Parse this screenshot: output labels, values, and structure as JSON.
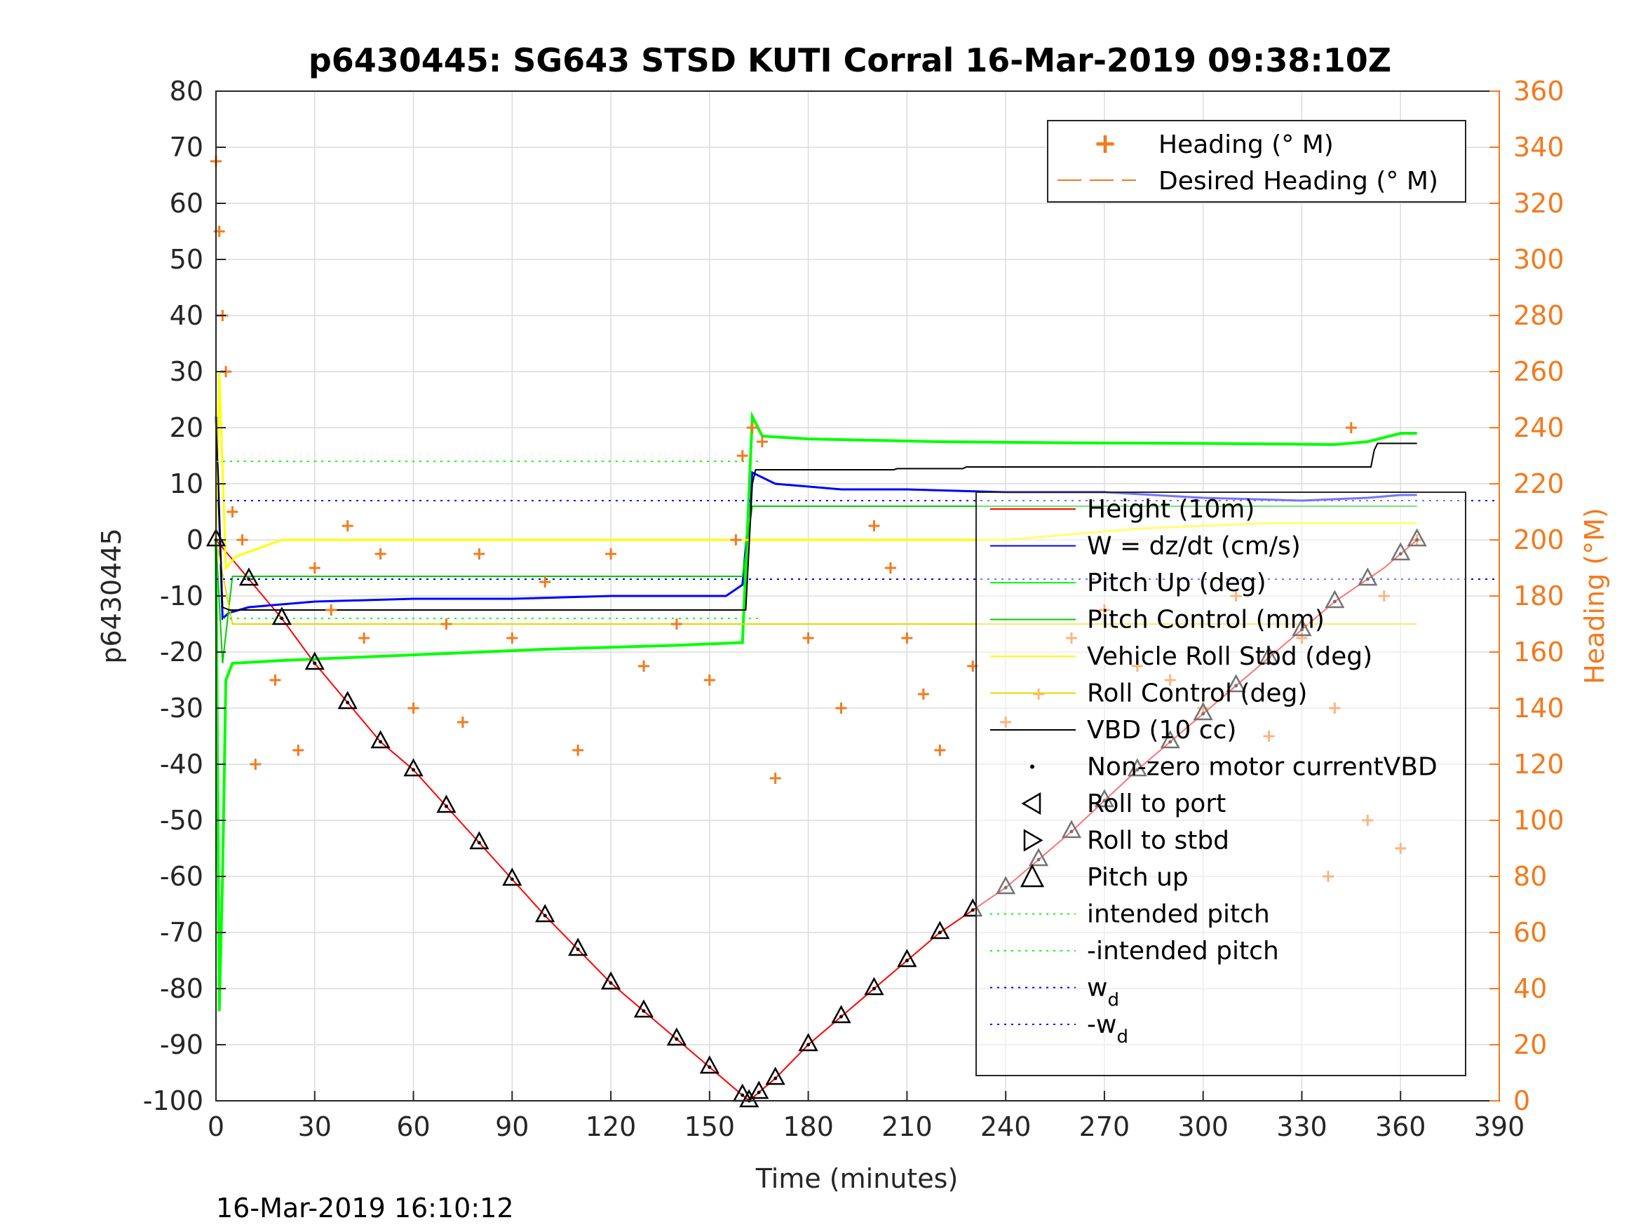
{
  "chart_data": {
    "type": "line",
    "title": "p6430445: SG643 STSD KUTI Corral 16-Mar-2019 09:38:10Z",
    "xlabel": "Time (minutes)",
    "ylabel_left": "p6430445",
    "ylabel_right": "Heading (°M)",
    "timestamp": "16-Mar-2019 16:10:12",
    "xlim": [
      0,
      390
    ],
    "ylim_left": [
      -100,
      80
    ],
    "ylim_right": [
      0,
      360
    ],
    "x_ticks": [
      "0",
      "30",
      "60",
      "90",
      "120",
      "150",
      "180",
      "210",
      "240",
      "270",
      "300",
      "330",
      "360",
      "390"
    ],
    "y_left_ticks": [
      "80",
      "70",
      "60",
      "50",
      "40",
      "30",
      "20",
      "10",
      "0",
      "-10",
      "-20",
      "-30",
      "-40",
      "-50",
      "-60",
      "-70",
      "-80",
      "-90",
      "-100"
    ],
    "y_right_ticks": [
      "360",
      "340",
      "320",
      "300",
      "280",
      "260",
      "240",
      "220",
      "200",
      "180",
      "160",
      "140",
      "120",
      "100",
      "80",
      "60",
      "40",
      "20",
      "0"
    ],
    "grid": true,
    "colors": {
      "heading": "#F27A1E",
      "height": "#FF0000",
      "w": "#0000FF",
      "pitch": "#00FF00",
      "roll": "#FFFF00",
      "vbd": "#000000",
      "axis_right": "#F27A1E"
    },
    "legend_heading": {
      "placement": "top-right",
      "entries": [
        "Heading (° M)",
        "Desired Heading (° M)"
      ]
    },
    "legend_main": {
      "placement": "right",
      "entries": [
        "Height (10m)",
        "W = dz/dt (cm/s)",
        "Pitch Up (deg)",
        "Pitch Control (mm)",
        "Vehicle Roll Stbd (deg)",
        "Roll Control (deg)",
        "VBD (10 cc)",
        "Non-zero motor currentVBD",
        "Roll to port",
        "Roll to stbd",
        "Pitch up",
        "intended pitch",
        "-intended pitch",
        "w",
        "-w"
      ],
      "subscript": "d"
    },
    "series": [
      {
        "name": "Height (10m)",
        "axis": "left",
        "x": [
          0,
          10,
          20,
          30,
          40,
          50,
          60,
          80,
          100,
          120,
          140,
          150,
          162,
          170,
          180,
          200,
          220,
          240,
          260,
          280,
          300,
          320,
          340,
          355,
          365
        ],
        "y": [
          0,
          -7,
          -14,
          -22,
          -29,
          -36,
          -41,
          -54,
          -67,
          -79,
          -89,
          -94,
          -100,
          -96,
          -90,
          -80,
          -70,
          -62,
          -52,
          -41,
          -31,
          -21,
          -11,
          -5,
          0
        ]
      },
      {
        "name": "W = dz/dt (cm/s)",
        "axis": "left",
        "x": [
          0,
          2,
          4,
          10,
          30,
          60,
          90,
          120,
          140,
          155,
          160,
          163,
          170,
          190,
          210,
          240,
          270,
          300,
          330,
          350,
          360,
          365
        ],
        "y": [
          22,
          -14,
          -13,
          -12,
          -11,
          -10.5,
          -10.5,
          -10,
          -10,
          -10,
          -8,
          12,
          10,
          9,
          9,
          8.5,
          8.5,
          7.5,
          7,
          7.5,
          8,
          8
        ]
      },
      {
        "name": "Pitch Up (deg)",
        "axis": "left",
        "x": [
          0,
          1,
          2,
          3,
          5,
          20,
          60,
          100,
          140,
          160,
          161,
          163,
          166,
          180,
          220,
          260,
          300,
          340,
          350,
          360,
          365
        ],
        "y": [
          0,
          -84,
          -60,
          -25,
          -22,
          -21.5,
          -20.5,
          -19.5,
          -18.8,
          -18.3,
          -5,
          22,
          18.5,
          18,
          17.5,
          17.3,
          17.2,
          17,
          17.5,
          19,
          19
        ]
      },
      {
        "name": "Pitch Control (mm)",
        "axis": "left",
        "x": [
          0,
          2,
          5,
          60,
          120,
          160,
          163,
          200,
          300,
          365
        ],
        "y": [
          0,
          -22,
          -6.5,
          -6.5,
          -6.5,
          -6.5,
          6,
          6,
          6,
          6
        ]
      },
      {
        "name": "Vehicle Roll Stbd (deg)",
        "axis": "left",
        "x": [
          0,
          1,
          3,
          6,
          20,
          60,
          100,
          140,
          160,
          165,
          200,
          240,
          280,
          320,
          360,
          365
        ],
        "y": [
          0,
          30,
          -5,
          -3,
          0,
          0,
          0,
          0,
          0,
          0,
          0,
          0,
          2,
          3,
          3,
          3
        ]
      },
      {
        "name": "Roll Control (deg)",
        "axis": "left",
        "x": [
          0,
          5,
          60,
          120,
          160,
          165,
          365
        ],
        "y": [
          0,
          -15,
          -15,
          -15,
          -15,
          -15,
          -15
        ]
      },
      {
        "name": "VBD (10 cc)",
        "axis": "left",
        "x": [
          0,
          2,
          4,
          160,
          161,
          163,
          164,
          206,
          207,
          227,
          228,
          350,
          351,
          352,
          353,
          365
        ],
        "y": [
          22,
          -12,
          -12.5,
          -12.5,
          -12.5,
          10,
          12.5,
          12.5,
          12.7,
          12.7,
          13,
          13,
          13,
          16,
          17.2,
          17.2
        ]
      },
      {
        "name": "intended pitch",
        "axis": "left",
        "x": [
          0,
          165
        ],
        "y": [
          14,
          14
        ]
      },
      {
        "name": "-intended pitch",
        "axis": "left",
        "x": [
          0,
          165
        ],
        "y": [
          -14,
          -14
        ]
      },
      {
        "name": "w",
        "axis": "left",
        "x": [
          0,
          390
        ],
        "y": [
          7,
          7
        ]
      },
      {
        "name": "-w",
        "axis": "left",
        "x": [
          0,
          390
        ],
        "y": [
          -7,
          -7
        ]
      },
      {
        "name": "Heading (° M)",
        "axis": "right",
        "x": [
          0,
          1,
          2,
          3,
          5,
          8,
          12,
          18,
          25,
          30,
          35,
          40,
          45,
          50,
          60,
          70,
          75,
          80,
          90,
          100,
          110,
          120,
          130,
          140,
          150,
          158,
          160,
          163,
          166,
          170,
          180,
          190,
          200,
          205,
          210,
          215,
          220,
          230,
          240,
          250,
          260,
          270,
          280,
          290,
          300,
          310,
          320,
          330,
          338,
          340,
          345,
          350,
          355,
          360,
          365
        ],
        "y": [
          335,
          310,
          280,
          260,
          210,
          200,
          120,
          150,
          125,
          190,
          175,
          205,
          165,
          195,
          140,
          170,
          135,
          195,
          165,
          185,
          125,
          195,
          155,
          170,
          150,
          200,
          230,
          240,
          235,
          115,
          165,
          140,
          205,
          190,
          165,
          145,
          125,
          155,
          135,
          145,
          165,
          175,
          155,
          150,
          140,
          180,
          130,
          165,
          80,
          140,
          240,
          100,
          180,
          90,
          200
        ]
      }
    ],
    "markers": {
      "vbd_motor_times": [
        0,
        10,
        20,
        30,
        40,
        50,
        60,
        70,
        80,
        90,
        100,
        110,
        120,
        130,
        140,
        150,
        160,
        162,
        165,
        170,
        180,
        190,
        200,
        210,
        220,
        230,
        240,
        250,
        260,
        270,
        280,
        290,
        300,
        310,
        320,
        330,
        340,
        350,
        360,
        365
      ]
    }
  }
}
